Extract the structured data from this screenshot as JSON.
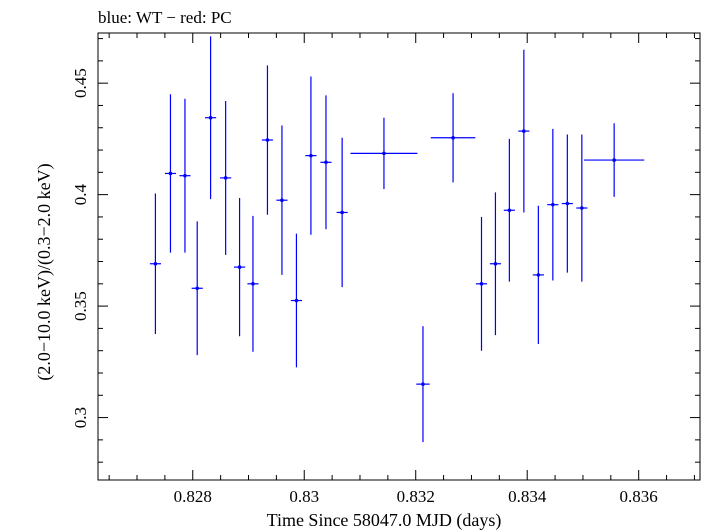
{
  "chart_data": {
    "type": "scatter",
    "title": "blue: WT − red: PC",
    "xlabel": "Time Since 58047.0 MJD (days)",
    "ylabel": "(2.0−10.0 keV)/(0.3−2.0 keV)",
    "xlim": [
      0.8263,
      0.8371
    ],
    "ylim": [
      0.272,
      0.4725
    ],
    "x_ticks": [
      {
        "value": 0.828,
        "label": "0.828"
      },
      {
        "value": 0.83,
        "label": "0.83"
      },
      {
        "value": 0.832,
        "label": "0.832"
      },
      {
        "value": 0.834,
        "label": "0.834"
      },
      {
        "value": 0.836,
        "label": "0.836"
      }
    ],
    "y_ticks": [
      {
        "value": 0.3,
        "label": "0.3"
      },
      {
        "value": 0.35,
        "label": "0.35"
      },
      {
        "value": 0.4,
        "label": "0.4"
      },
      {
        "value": 0.45,
        "label": "0.45"
      }
    ],
    "grid": false,
    "legend": "none",
    "series": [
      {
        "color": "#0000ff",
        "points": [
          {
            "x": 0.82733,
            "y": 0.369,
            "xerr": 0.0001,
            "yerr": 0.0315
          },
          {
            "x": 0.8276,
            "y": 0.4095,
            "xerr": 0.0001,
            "yerr": 0.0355
          },
          {
            "x": 0.82786,
            "y": 0.4085,
            "xerr": 0.0001,
            "yerr": 0.0345
          },
          {
            "x": 0.82808,
            "y": 0.358,
            "xerr": 0.0001,
            "yerr": 0.03
          },
          {
            "x": 0.82832,
            "y": 0.4345,
            "xerr": 0.0001,
            "yerr": 0.0365
          },
          {
            "x": 0.82859,
            "y": 0.4075,
            "xerr": 0.0001,
            "yerr": 0.0345
          },
          {
            "x": 0.82884,
            "y": 0.3675,
            "xerr": 0.0001,
            "yerr": 0.031
          },
          {
            "x": 0.82908,
            "y": 0.36,
            "xerr": 0.0001,
            "yerr": 0.0305
          },
          {
            "x": 0.82934,
            "y": 0.4245,
            "xerr": 0.0001,
            "yerr": 0.0335
          },
          {
            "x": 0.8296,
            "y": 0.3975,
            "xerr": 0.0001,
            "yerr": 0.0335
          },
          {
            "x": 0.82986,
            "y": 0.3525,
            "xerr": 0.0001,
            "yerr": 0.03
          },
          {
            "x": 0.83012,
            "y": 0.4175,
            "xerr": 0.0001,
            "yerr": 0.0355
          },
          {
            "x": 0.83039,
            "y": 0.4145,
            "xerr": 0.0001,
            "yerr": 0.03
          },
          {
            "x": 0.83068,
            "y": 0.392,
            "xerr": 0.0001,
            "yerr": 0.0335
          },
          {
            "x": 0.83143,
            "y": 0.4185,
            "xerr": 0.0006,
            "yerr": 0.016
          },
          {
            "x": 0.83213,
            "y": 0.315,
            "xerr": 0.00012,
            "yerr": 0.026
          },
          {
            "x": 0.83267,
            "y": 0.4255,
            "xerr": 0.0004,
            "yerr": 0.02
          },
          {
            "x": 0.83318,
            "y": 0.36,
            "xerr": 0.0001,
            "yerr": 0.03
          },
          {
            "x": 0.83343,
            "y": 0.369,
            "xerr": 0.0001,
            "yerr": 0.032
          },
          {
            "x": 0.83368,
            "y": 0.393,
            "xerr": 0.0001,
            "yerr": 0.032
          },
          {
            "x": 0.83394,
            "y": 0.4285,
            "xerr": 0.0001,
            "yerr": 0.0365
          },
          {
            "x": 0.8342,
            "y": 0.364,
            "xerr": 0.0001,
            "yerr": 0.031
          },
          {
            "x": 0.83446,
            "y": 0.3955,
            "xerr": 0.0001,
            "yerr": 0.034
          },
          {
            "x": 0.83472,
            "y": 0.396,
            "xerr": 0.0001,
            "yerr": 0.031
          },
          {
            "x": 0.83498,
            "y": 0.394,
            "xerr": 0.0001,
            "yerr": 0.033
          },
          {
            "x": 0.83556,
            "y": 0.4155,
            "xerr": 0.00054,
            "yerr": 0.0165
          }
        ]
      }
    ]
  }
}
